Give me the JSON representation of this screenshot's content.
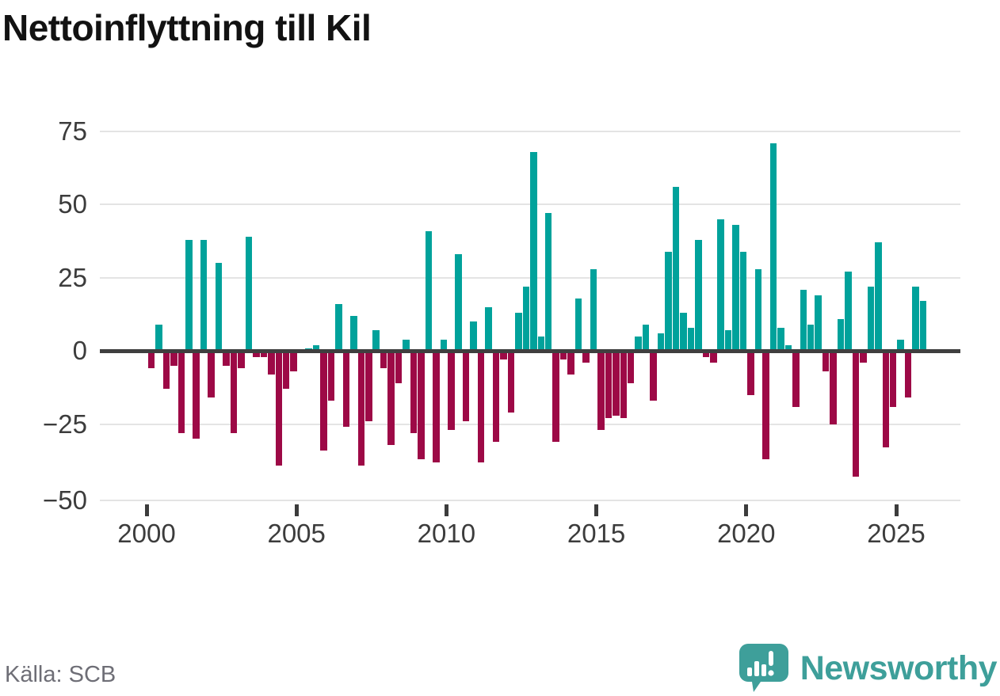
{
  "title": "Nettoinflyttning till Kil",
  "source": "Källa: SCB",
  "branding": {
    "name": "Newsworthy",
    "logo_icon": "speech-bubble-bar-chart",
    "color": "#3e9f9a"
  },
  "colors": {
    "positive_bar": "#00a29b",
    "negative_bar": "#9d0946",
    "gridline": "#e4e4e4",
    "zero_line": "#3f3f3f",
    "axis_text": "#3c3c3c",
    "title_text": "#121212",
    "source_text": "#6e6e76"
  },
  "chart_data": {
    "type": "bar",
    "title": "Nettoinflyttning till Kil",
    "xlabel": "",
    "ylabel": "",
    "x_unit": "quarter",
    "start": "2000-Q1",
    "end": "2025-Q4",
    "ylim": [
      -50,
      79
    ],
    "grid": true,
    "legend": "none",
    "y_ticks": [
      75,
      50,
      25,
      0,
      -25,
      -50
    ],
    "x_tick_labels": [
      "2000",
      "2005",
      "2010",
      "2015",
      "2020",
      "2025"
    ],
    "series": [
      {
        "name": "Nettoinflyttning",
        "values": [
          -6,
          9,
          -13,
          -5,
          -28,
          38,
          -30,
          38,
          -16,
          30,
          -5,
          -28,
          -6,
          39,
          -2,
          -2,
          -8,
          -39,
          -13,
          -7,
          0,
          1,
          2,
          -34,
          -17,
          16,
          -26,
          12,
          -39,
          -24,
          7,
          -6,
          -32,
          -11,
          4,
          -28,
          -37,
          41,
          -38,
          4,
          -27,
          33,
          -24,
          10,
          -38,
          15,
          -31,
          -3,
          -21,
          13,
          22,
          68,
          5,
          47,
          -31,
          -3,
          -8,
          18,
          -4,
          28,
          -27,
          -23,
          -22,
          -23,
          -11,
          5,
          9,
          -17,
          6,
          34,
          56,
          13,
          8,
          38,
          -2,
          -4,
          45,
          7,
          43,
          34,
          -15,
          28,
          -37,
          71,
          8,
          2,
          -19,
          21,
          9,
          19,
          -7,
          -25,
          11,
          27,
          -43,
          -4,
          22,
          37,
          -33,
          -19,
          4,
          -16,
          22,
          17
        ]
      }
    ]
  }
}
